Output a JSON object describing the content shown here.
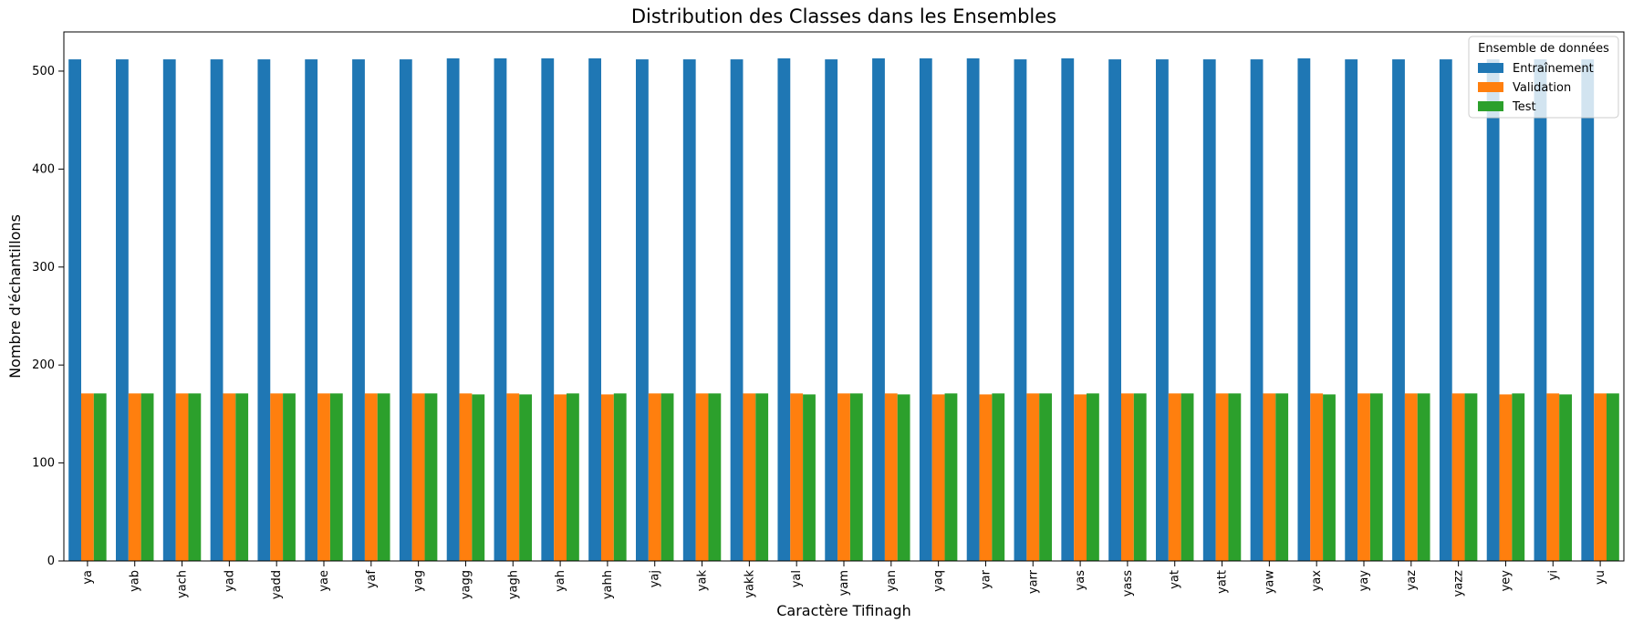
{
  "chart_data": {
    "type": "bar",
    "title": "Distribution des Classes dans les Ensembles",
    "xlabel": "Caractère Tifinagh",
    "ylabel": "Nombre d'échantillons",
    "ylim": [
      0,
      540
    ],
    "yticks": [
      0,
      100,
      200,
      300,
      400,
      500
    ],
    "grid": false,
    "legend": {
      "title": "Ensemble de données",
      "placement": "top-right"
    },
    "categories": [
      "ya",
      "yab",
      "yach",
      "yad",
      "yadd",
      "yae",
      "yaf",
      "yag",
      "yagg",
      "yagh",
      "yah",
      "yahh",
      "yaj",
      "yak",
      "yakk",
      "yal",
      "yam",
      "yan",
      "yaq",
      "yar",
      "yarr",
      "yas",
      "yass",
      "yat",
      "yatt",
      "yaw",
      "yax",
      "yay",
      "yaz",
      "yazz",
      "yey",
      "yi",
      "yu"
    ],
    "series": [
      {
        "name": "Entraînement",
        "color": "#1f77b4",
        "values": [
          512,
          512,
          512,
          512,
          512,
          512,
          512,
          512,
          513,
          513,
          513,
          513,
          512,
          512,
          512,
          513,
          512,
          513,
          513,
          513,
          512,
          513,
          512,
          512,
          512,
          512,
          513,
          512,
          512,
          512,
          512,
          512,
          512
        ]
      },
      {
        "name": "Validation",
        "color": "#ff7f0e",
        "values": [
          171,
          171,
          171,
          171,
          171,
          171,
          171,
          171,
          171,
          171,
          170,
          170,
          171,
          171,
          171,
          171,
          171,
          171,
          170,
          170,
          171,
          170,
          171,
          171,
          171,
          171,
          171,
          171,
          171,
          171,
          170,
          171,
          171
        ]
      },
      {
        "name": "Test",
        "color": "#2ca02c",
        "values": [
          171,
          171,
          171,
          171,
          171,
          171,
          171,
          171,
          170,
          170,
          171,
          171,
          171,
          171,
          171,
          170,
          171,
          170,
          171,
          171,
          171,
          171,
          171,
          171,
          171,
          171,
          170,
          171,
          171,
          171,
          171,
          170,
          171
        ]
      }
    ]
  }
}
